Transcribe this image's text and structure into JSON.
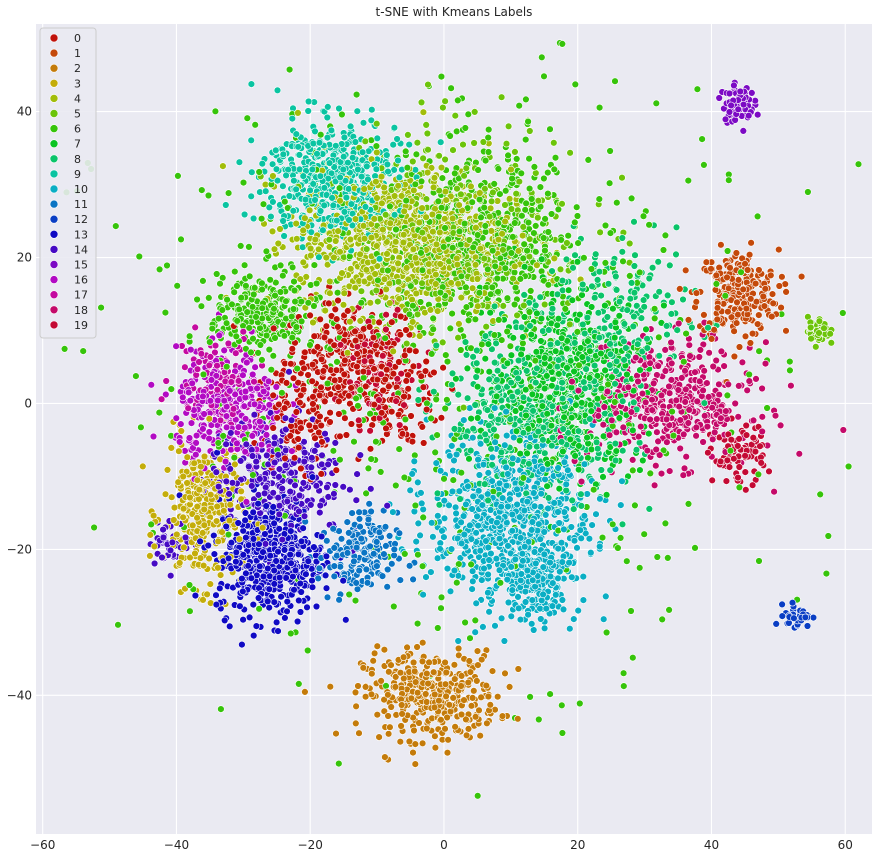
{
  "chart_data": {
    "type": "scatter",
    "title": "t-SNE with Kmeans Labels",
    "xlabel": "",
    "ylabel": "",
    "xlim": [
      -61,
      64
    ],
    "ylim": [
      -59,
      52
    ],
    "xticks": [
      -60,
      -40,
      -20,
      0,
      20,
      40,
      60
    ],
    "yticks": [
      -40,
      -20,
      0,
      20,
      40
    ],
    "grid": true,
    "legend_placement": "top-left",
    "background": "#eaeaf2",
    "series": [
      {
        "name": "0",
        "color": "#c0120b"
      },
      {
        "name": "1",
        "color": "#c4490a"
      },
      {
        "name": "2",
        "color": "#c47b0a"
      },
      {
        "name": "3",
        "color": "#c4ad0a"
      },
      {
        "name": "4",
        "color": "#a2bd0a"
      },
      {
        "name": "5",
        "color": "#6cc40a"
      },
      {
        "name": "6",
        "color": "#36c40a"
      },
      {
        "name": "7",
        "color": "#0ac422"
      },
      {
        "name": "8",
        "color": "#0ac46a"
      },
      {
        "name": "9",
        "color": "#0ac4a2"
      },
      {
        "name": "10",
        "color": "#0aaec4"
      },
      {
        "name": "11",
        "color": "#0a74c4"
      },
      {
        "name": "12",
        "color": "#0a3ec4"
      },
      {
        "name": "13",
        "color": "#100ac4"
      },
      {
        "name": "14",
        "color": "#460ac4"
      },
      {
        "name": "15",
        "color": "#7c0ac4"
      },
      {
        "name": "16",
        "color": "#b20ac4"
      },
      {
        "name": "17",
        "color": "#c40aa0"
      },
      {
        "name": "18",
        "color": "#c40a6a"
      },
      {
        "name": "19",
        "color": "#c40a34"
      }
    ],
    "clusters": [
      {
        "series": 0,
        "cx": -14,
        "cy": 6,
        "sx": 5,
        "sy": 4,
        "n": 300
      },
      {
        "series": 0,
        "cx": -22,
        "cy": -3,
        "sx": 4,
        "sy": 4,
        "n": 120
      },
      {
        "series": 0,
        "cx": -6,
        "cy": 0,
        "sx": 3,
        "sy": 3,
        "n": 80
      },
      {
        "series": 1,
        "cx": 44,
        "cy": 15,
        "sx": 3,
        "sy": 3,
        "n": 260
      },
      {
        "series": 2,
        "cx": -2,
        "cy": -40,
        "sx": 5,
        "sy": 3,
        "n": 380
      },
      {
        "series": 3,
        "cx": -36,
        "cy": -15,
        "sx": 3,
        "sy": 5,
        "n": 300
      },
      {
        "series": 4,
        "cx": -6,
        "cy": 22,
        "sx": 8,
        "sy": 5,
        "n": 900
      },
      {
        "series": 5,
        "cx": 56,
        "cy": 10,
        "sx": 0.8,
        "sy": 1,
        "n": 40
      },
      {
        "series": 5,
        "cx": 2,
        "cy": 24,
        "sx": 10,
        "sy": 8,
        "n": 300
      },
      {
        "series": 6,
        "cx": 6,
        "cy": 22,
        "sx": 8,
        "sy": 6,
        "n": 500
      },
      {
        "series": 6,
        "cx": -27,
        "cy": 12,
        "sx": 4,
        "sy": 3,
        "n": 250
      },
      {
        "series": 6,
        "cx": 0,
        "cy": 5,
        "sx": 25,
        "sy": 20,
        "n": 500
      },
      {
        "series": 7,
        "cx": 18,
        "cy": 3,
        "sx": 6,
        "sy": 6,
        "n": 600
      },
      {
        "series": 8,
        "cx": 14,
        "cy": -2,
        "sx": 7,
        "sy": 6,
        "n": 500
      },
      {
        "series": 8,
        "cx": 26,
        "cy": 12,
        "sx": 6,
        "sy": 5,
        "n": 200
      },
      {
        "series": 9,
        "cx": -17,
        "cy": 31,
        "sx": 5,
        "sy": 4,
        "n": 500
      },
      {
        "series": 10,
        "cx": 10,
        "cy": -16,
        "sx": 6,
        "sy": 6,
        "n": 800
      },
      {
        "series": 10,
        "cx": 14,
        "cy": -25,
        "sx": 2,
        "sy": 2.5,
        "n": 120
      },
      {
        "series": 11,
        "cx": -13,
        "cy": -21,
        "sx": 3,
        "sy": 3,
        "n": 180
      },
      {
        "series": 12,
        "cx": 53,
        "cy": -29,
        "sx": 1,
        "sy": 0.8,
        "n": 40
      },
      {
        "series": 13,
        "cx": -26,
        "cy": -21,
        "sx": 4,
        "sy": 4,
        "n": 500
      },
      {
        "series": 14,
        "cx": -25,
        "cy": -10,
        "sx": 5,
        "sy": 4,
        "n": 300
      },
      {
        "series": 14,
        "cx": -41,
        "cy": -19,
        "sx": 1.5,
        "sy": 1.5,
        "n": 40
      },
      {
        "series": 15,
        "cx": 44,
        "cy": 41,
        "sx": 1.2,
        "sy": 1.2,
        "n": 90
      },
      {
        "series": 16,
        "cx": -32,
        "cy": -1,
        "sx": 4,
        "sy": 4,
        "n": 350
      },
      {
        "series": 17,
        "cx": -34,
        "cy": 4,
        "sx": 3,
        "sy": 3,
        "n": 100
      },
      {
        "series": 18,
        "cx": 34,
        "cy": 0,
        "sx": 6,
        "sy": 4,
        "n": 450
      },
      {
        "series": 19,
        "cx": 44,
        "cy": -7,
        "sx": 2,
        "sy": 2,
        "n": 90
      },
      {
        "series": 19,
        "cx": -10,
        "cy": 5,
        "sx": 3,
        "sy": 4,
        "n": 80
      }
    ]
  }
}
